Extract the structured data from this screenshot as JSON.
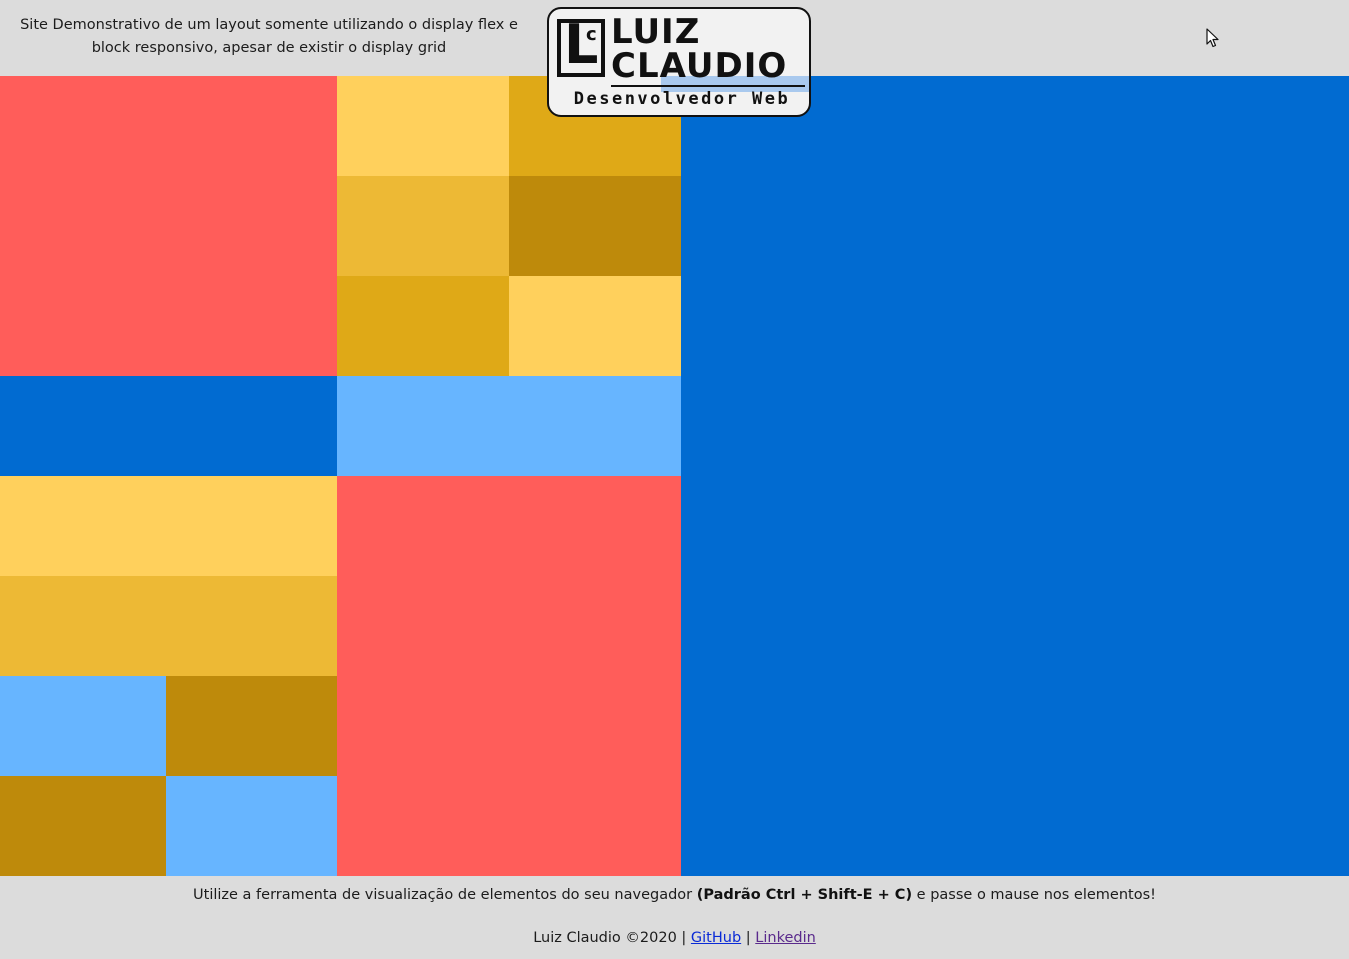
{
  "header": {
    "description": "Site Demonstrativo de um layout somente utilizando o display flex e block responsivo, apesar de existir o display grid"
  },
  "logo": {
    "monogram_l": "L",
    "monogram_c": "c",
    "name_line1": "LUIZ",
    "name_line2": "CLAUDIO",
    "subtitle": "Desenvolvedor Web"
  },
  "colors": {
    "red": "#ff5d5a",
    "yellow_light": "#ffd05c",
    "yellow_mid": "#edb935",
    "yellow_dark": "#dfa917",
    "gold": "#be8a0b",
    "blue_dark": "#016bd1",
    "blue_light": "#67b5ff",
    "background": "#dcdcdc"
  },
  "footer": {
    "tip_before": "Utilize a ferramenta de visualização de elementos do seu navegador ",
    "tip_bold": "(Padrão Ctrl + Shift-E + C)",
    "tip_after": " e passe o mause nos elementos!",
    "credit": "Luiz Claudio ©2020 | ",
    "separator": " | ",
    "github_label": "GitHub",
    "linkedin_label": "Linkedin"
  },
  "icons": {
    "cursor": "mouse-pointer-icon"
  }
}
